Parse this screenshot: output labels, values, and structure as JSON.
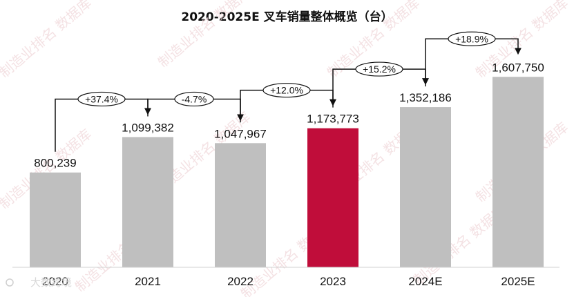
{
  "chart_data": {
    "type": "bar",
    "title": "2020-2025E 叉车销量整体概览（台）",
    "categories": [
      "2020",
      "2021",
      "2022",
      "2023",
      "2024E",
      "2025E"
    ],
    "values": [
      800239,
      1099382,
      1047967,
      1173773,
      1352186,
      1607750
    ],
    "value_labels": [
      "800,239",
      "1,099,382",
      "1,047,967",
      "1,173,773",
      "1,352,186",
      "1,607,750"
    ],
    "growth": [
      {
        "from": "2020",
        "to": "2021",
        "label": "+37.4%"
      },
      {
        "from": "2021",
        "to": "2022",
        "label": "-4.7%"
      },
      {
        "from": "2022",
        "to": "2023",
        "label": "+12.0%"
      },
      {
        "from": "2023",
        "to": "2024E",
        "label": "+15.2%"
      },
      {
        "from": "2024E",
        "to": "2025E",
        "label": "+18.9%"
      }
    ],
    "highlight_category": "2023",
    "colors": {
      "bar": "#bfbfbf",
      "highlight": "#c00d3a",
      "text": "#111111"
    },
    "ylim": [
      0,
      1720000
    ],
    "grid": false,
    "legend": false
  },
  "watermark": {
    "text": "制造业排名 数据库"
  },
  "source_logo": {
    "text": "大数跨境"
  }
}
